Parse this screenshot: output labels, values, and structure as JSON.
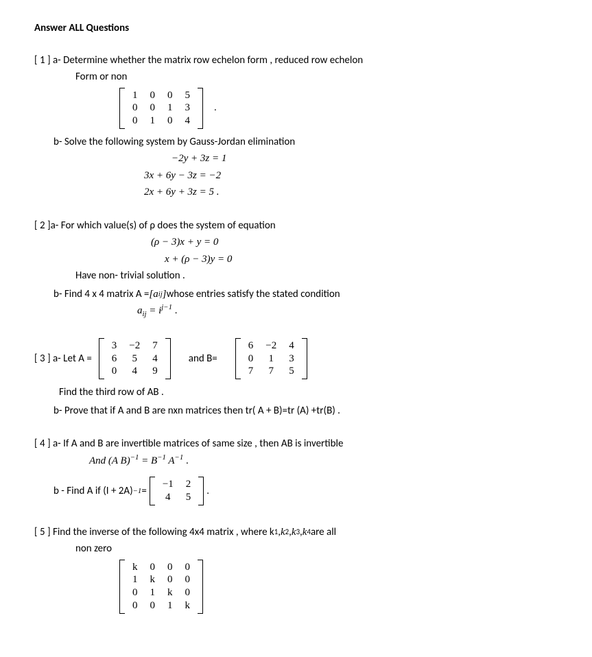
{
  "page": {
    "title": "Answer  ALL  Questions"
  },
  "q1": {
    "a_line": "[ 1 ] a- Determine whether the matrix row echelon form , reduced row echelon",
    "a_line2": "Form or non",
    "matrix": {
      "rows": [
        [
          "1",
          "0",
          "0",
          "5"
        ],
        [
          "0",
          "0",
          "1",
          "3"
        ],
        [
          "0",
          "1",
          "0",
          "4"
        ]
      ]
    },
    "dot": ".",
    "b_line": "b- Solve the following system by  Gauss-Jordan elimination",
    "eq1": "−2y + 3z = 1",
    "eq2": "3x + 6y − 3z = −2",
    "eq3": "2x + 6y + 3z = 5     ."
  },
  "q2": {
    "a_line": "[ 2 ]a- For which value(s) of  ρ  does the system of equation",
    "eq1": "(ρ − 3)x  +  y  = 0",
    "eq2": "x  +  (ρ − 3)y = 0",
    "triv": "Have non- trivial solution  .",
    "b_line1": "b- Find 4 x 4 matrix A  =  ",
    "b_aij": "[a",
    "b_ij": "ij",
    "b_close": "]",
    "b_line2": " whose entries satisfy the stated condition",
    "entry_eq": "a",
    "entry_ij": "ij",
    "entry_rhs": " = i",
    "entry_exp": "j−1",
    "entry_dot": "   ."
  },
  "q3": {
    "lead": "[ 3 ] a- Let   A = ",
    "matrixA": {
      "rows": [
        [
          "3",
          "−2",
          "7"
        ],
        [
          "6",
          "5",
          "4"
        ],
        [
          "0",
          "4",
          "9"
        ]
      ]
    },
    "and": "and    B= ",
    "matrixB": {
      "rows": [
        [
          "6",
          "−2",
          "4"
        ],
        [
          "0",
          "1",
          "3"
        ],
        [
          "7",
          "7",
          "5"
        ]
      ]
    },
    "find": "Find the third row of  AB  .",
    "b_line": "b- Prove that if  A  and  B  are  nxn  matrices then   tr( A + B)=tr (A) +tr(B)  ."
  },
  "q4": {
    "a_line": "[ 4 ] a- If  A  and B are invertible matrices of same size , then  AB  is invertible",
    "and_line_pre": "And (A B)",
    "and_exp1": "−1",
    "and_mid": " = B",
    "and_exp2": "−1",
    "and_mid2": " A",
    "and_exp3": "−1",
    "and_dot": " .",
    "b_pre": "b -   Find  A  if     (I + 2A)",
    "b_exp": "−1",
    "b_eq": " = ",
    "b_matrix": {
      "rows": [
        [
          "−1",
          "2"
        ],
        [
          "4",
          "5"
        ]
      ]
    },
    "b_dot": "  ."
  },
  "q5": {
    "line1_pre": "[ 5 ]   Find the inverse of the following  4x4  matrix , where k",
    "s1": "1",
    "c1": " , ",
    "line1_k2": "k",
    "s2": "2",
    "c2": " , ",
    "line1_k3": "k",
    "s3": "3",
    "c3": ", ",
    "line1_k4": "k",
    "s4": "4",
    "line1_post": " are all",
    "line2": "non zero",
    "matrix": {
      "rows": [
        [
          "k",
          "0",
          "0",
          "0"
        ],
        [
          "1",
          "k",
          "0",
          "0"
        ],
        [
          "0",
          "1",
          "k",
          "0"
        ],
        [
          "0",
          "0",
          "1",
          "k"
        ]
      ]
    }
  }
}
